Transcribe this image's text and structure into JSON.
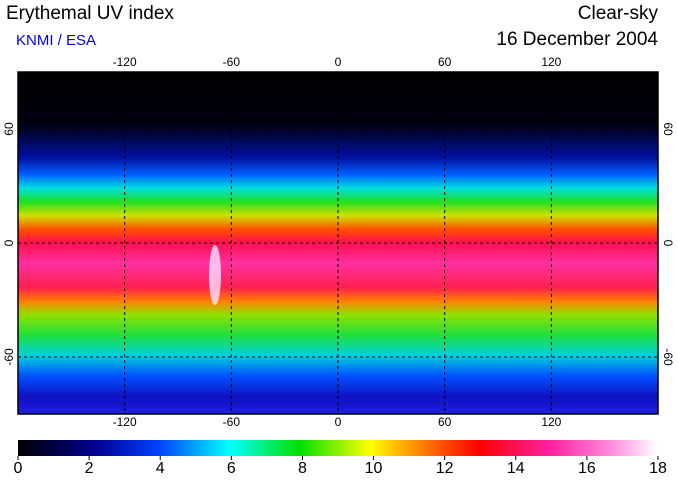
{
  "header": {
    "title": "Erythemal UV index",
    "source": "KNMI / ESA",
    "condition": "Clear-sky",
    "date": "16 December 2004"
  },
  "map": {
    "xlim": [
      -180,
      180
    ],
    "ylim": [
      -90,
      90
    ],
    "lon_ticks": [
      -120,
      -60,
      0,
      60,
      120
    ],
    "lat_ticks": [
      60,
      0,
      -60
    ]
  },
  "colorbar": {
    "ticks": [
      0,
      2,
      4,
      6,
      8,
      10,
      12,
      14,
      16,
      18
    ]
  }
}
